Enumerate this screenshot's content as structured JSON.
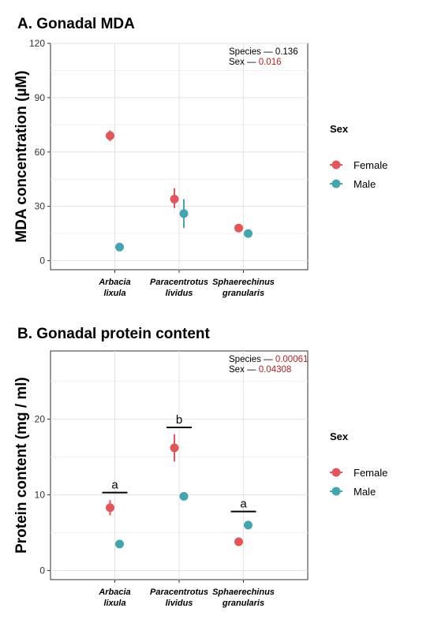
{
  "chart_data": [
    {
      "type": "scatter",
      "title": "A. Gonadal MDA",
      "ylabel": "MDA concentration (µM)",
      "xlabel": "",
      "categories": [
        {
          "line1": "Arbacia",
          "line2": "lixula"
        },
        {
          "line1": "Paracentrotus",
          "line2": "lividus"
        },
        {
          "line1": "Sphaerechinus",
          "line2": "granularis"
        }
      ],
      "ylim": [
        -5,
        120
      ],
      "yticks": [
        0,
        30,
        60,
        90,
        120
      ],
      "grid": true,
      "legend": {
        "title": "Sex",
        "placement": "right"
      },
      "series": [
        {
          "name": "Female",
          "color": "#E15759",
          "values": [
            69,
            34,
            18
          ],
          "lower": [
            66,
            29,
            18
          ],
          "upper": [
            72,
            40,
            18
          ]
        },
        {
          "name": "Male",
          "color": "#45A5AE",
          "values": [
            7.5,
            26,
            15
          ],
          "lower": [
            7.5,
            18,
            15
          ],
          "upper": [
            7.5,
            34,
            15
          ]
        }
      ],
      "stats": [
        {
          "label": "Species —",
          "value": "0.136",
          "color": "#000000"
        },
        {
          "label": "Sex —",
          "value": "0.016",
          "color": "#B22222"
        }
      ],
      "significance": []
    },
    {
      "type": "scatter",
      "title": "B. Gonadal protein content",
      "ylabel": "Protein content (mg / ml)",
      "xlabel": "",
      "categories": [
        {
          "line1": "Arbacia",
          "line2": "lixula"
        },
        {
          "line1": "Paracentrotus",
          "line2": "lividus"
        },
        {
          "line1": "Sphaerechinus",
          "line2": "granularis"
        }
      ],
      "ylim": [
        -1.2,
        29
      ],
      "yticks": [
        0,
        10,
        20
      ],
      "grid": true,
      "legend": {
        "title": "Sex",
        "placement": "right"
      },
      "series": [
        {
          "name": "Female",
          "color": "#E15759",
          "values": [
            8.3,
            16.2,
            3.8
          ],
          "lower": [
            7.3,
            14.4,
            3.8
          ],
          "upper": [
            9.3,
            18.0,
            3.8
          ]
        },
        {
          "name": "Male",
          "color": "#45A5AE",
          "values": [
            3.5,
            9.8,
            6.0
          ],
          "lower": [
            3.5,
            9.8,
            6.0
          ],
          "upper": [
            3.5,
            9.8,
            6.0
          ]
        }
      ],
      "stats": [
        {
          "label": "Species —",
          "value": "0.00061",
          "color": "#B22222"
        },
        {
          "label": "Sex —",
          "value": "0.04308",
          "color": "#B22222"
        }
      ],
      "significance": [
        {
          "category": 0,
          "letter": "a",
          "y": 10.3
        },
        {
          "category": 1,
          "letter": "b",
          "y": 18.9
        },
        {
          "category": 2,
          "letter": "a",
          "y": 7.8
        }
      ]
    }
  ]
}
